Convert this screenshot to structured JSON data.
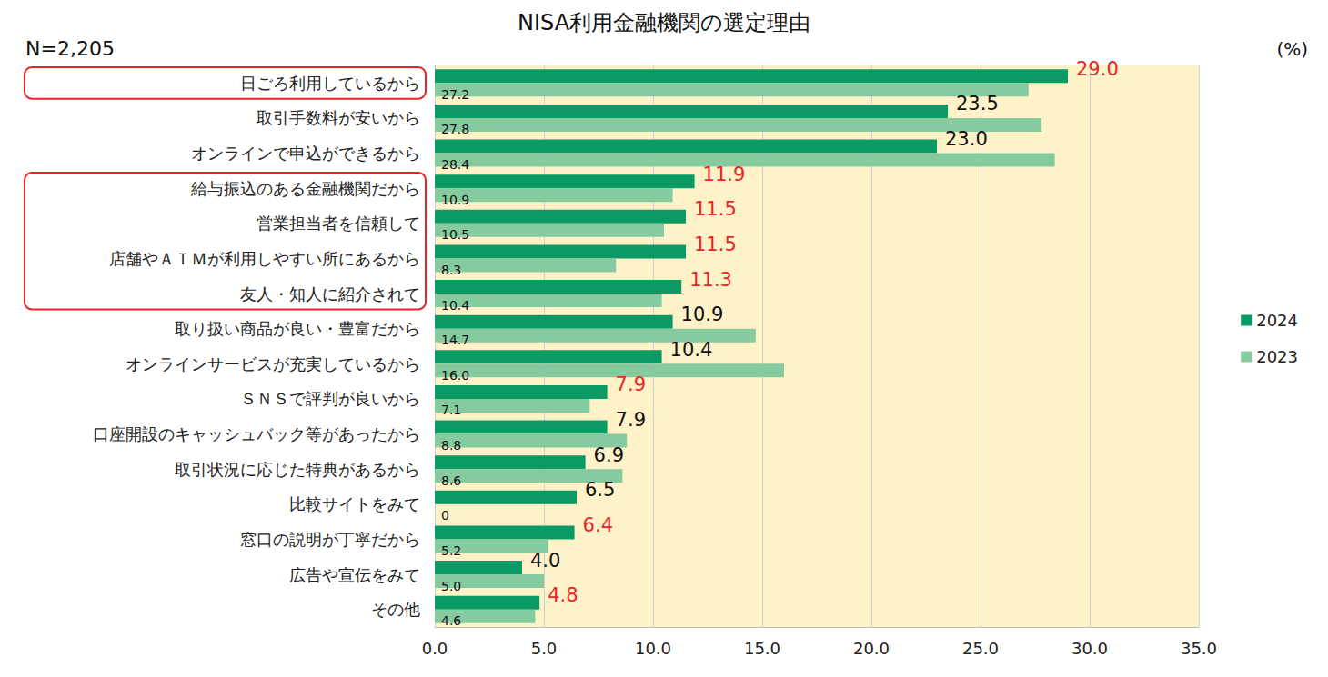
{
  "chart_data": {
    "type": "bar",
    "title": "NISA利用金融機関の選定理由",
    "annotations": [
      "N=2,205",
      "(%)"
    ],
    "orientation": "horizontal",
    "categories": [
      "日ごろ利用しているから",
      "取引手数料が安いから",
      "オンラインで申込ができるから",
      "給与振込のある金融機関だから",
      "営業担当者を信頼して",
      "店舗やＡＴＭが利用しやすい所にあるから",
      "友人・知人に紹介されて",
      "取り扱い商品が良い・豊富だから",
      "オンラインサービスが充実しているから",
      "ＳＮＳで評判が良いから",
      "口座開設のキャッシュバック等があったから",
      "取引状況に応じた特典があるから",
      "比較サイトをみて",
      "窓口の説明が丁寧だから",
      "広告や宣伝をみて",
      "その他"
    ],
    "series": [
      {
        "name": "2024",
        "color": "#0a9a64",
        "values": [
          29.0,
          23.5,
          23.0,
          11.9,
          11.5,
          11.5,
          11.3,
          10.9,
          10.4,
          7.9,
          7.9,
          6.9,
          6.5,
          6.4,
          4.0,
          4.8
        ],
        "value_labels": [
          "29.0",
          "23.5",
          "23.0",
          "11.9",
          "11.5",
          "11.5",
          "11.3",
          "10.9",
          "10.4",
          "7.9",
          "7.9",
          "6.9",
          "6.5",
          "6.4",
          "4.0",
          "4.8"
        ]
      },
      {
        "name": "2023",
        "color": "#86caa0",
        "values": [
          27.2,
          27.8,
          28.4,
          10.9,
          10.5,
          8.3,
          10.4,
          14.7,
          16.0,
          7.1,
          8.8,
          8.6,
          0,
          5.2,
          5.0,
          4.6
        ],
        "value_labels": [
          "27.2",
          "27.8",
          "28.4",
          "10.9",
          "10.5",
          "8.3",
          "10.4",
          "14.7",
          "16.0",
          "7.1",
          "8.8",
          "8.6",
          "0",
          "5.2",
          "5.0",
          "4.6"
        ]
      }
    ],
    "xlim": [
      0,
      35
    ],
    "xticks": [
      {
        "value": 0,
        "label": "0.0"
      },
      {
        "value": 5,
        "label": "5.0"
      },
      {
        "value": 10,
        "label": "10.0"
      },
      {
        "value": 15,
        "label": "15.0"
      },
      {
        "value": 20,
        "label": "20.0"
      },
      {
        "value": 25,
        "label": "25.0"
      },
      {
        "value": 30,
        "label": "30.0"
      },
      {
        "value": 35,
        "label": "35.0"
      }
    ],
    "grid": true,
    "legend": "right",
    "data_labels": true
  }
}
